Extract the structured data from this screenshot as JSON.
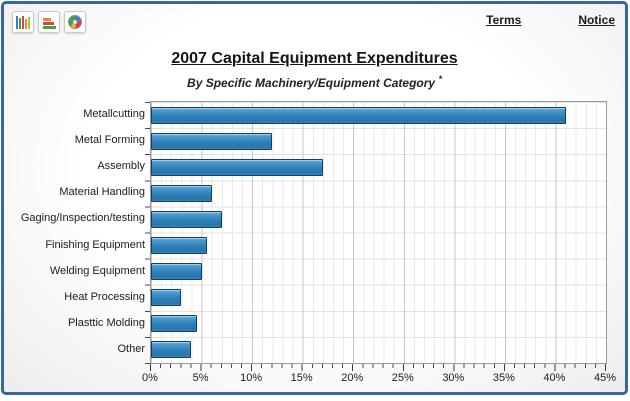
{
  "header": {
    "links": [
      {
        "label": "Terms"
      },
      {
        "label": "Notice"
      }
    ],
    "chart_type_buttons": [
      {
        "name": "column-chart"
      },
      {
        "name": "horizontal-bar-chart"
      },
      {
        "name": "pie-chart"
      }
    ]
  },
  "title": "2007 Capital Equipment Expenditures",
  "subtitle": "By Specific Machinery/Equipment Category",
  "subtitle_footnote_marker": "*",
  "chart_data": {
    "type": "bar",
    "orientation": "horizontal",
    "title": "2007 Capital Equipment Expenditures",
    "subtitle": "By Specific Machinery/Equipment Category *",
    "categories": [
      "Metallcutting",
      "Metal Forming",
      "Assembly",
      "Material Handling",
      "Gaging/Inspection/testing",
      "Finishing Equipment",
      "Welding Equipment",
      "Heat Processing",
      "Plasttic Molding",
      "Other"
    ],
    "values": [
      41,
      12,
      17,
      6,
      7,
      5.5,
      5,
      3,
      4.5,
      4
    ],
    "value_unit": "%",
    "xlim": [
      0,
      45
    ],
    "x_tick_step": 5,
    "x_tick_labels": [
      "0%",
      "5%",
      "10%",
      "15%",
      "20%",
      "25%",
      "30%",
      "35%",
      "40%",
      "45%"
    ],
    "grid": "major and minor vertical gridlines, horizontal row separators",
    "legend": "none",
    "bar_color": "#2e84ba",
    "bar_border_color": "#123f63"
  },
  "colors": {
    "frame_border": "#3468a5",
    "plot_border": "#9c9c9c",
    "major_grid": "#c6c6c6",
    "minor_grid": "#e9e9e9"
  }
}
